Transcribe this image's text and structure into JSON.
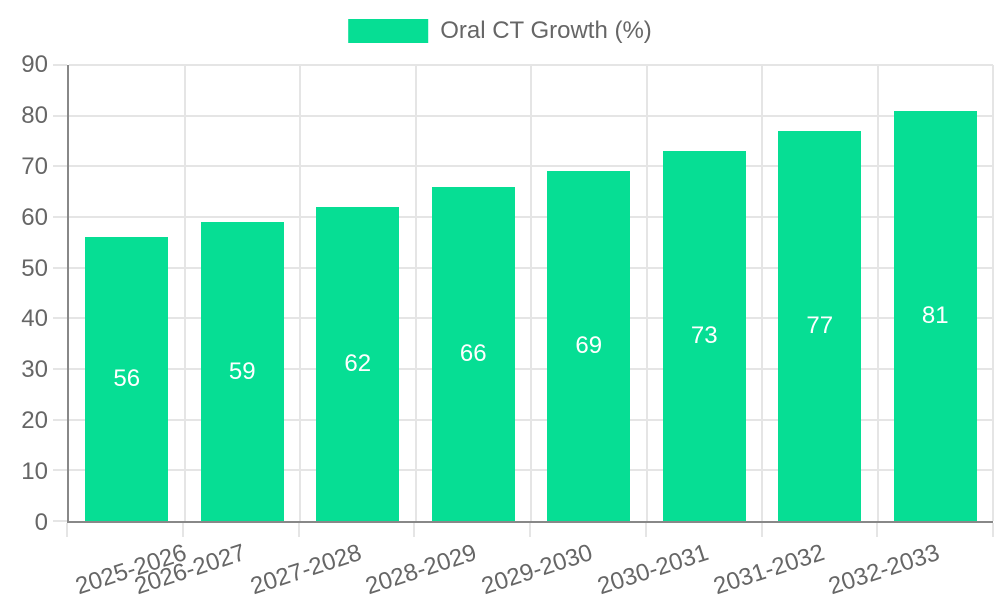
{
  "legend": {
    "label": "Oral CT Growth (%)"
  },
  "chart_data": {
    "type": "bar",
    "title": "",
    "legend_position": "top",
    "series_name": "Oral CT Growth (%)",
    "categories": [
      "2025-2026",
      "2026-2027",
      "2027-2028",
      "2028-2029",
      "2029-2030",
      "2030-2031",
      "2031-2032",
      "2032-2033"
    ],
    "values": [
      56,
      59,
      62,
      66,
      69,
      73,
      77,
      81
    ],
    "xlabel": "",
    "ylabel": "",
    "ylim": [
      0,
      90
    ],
    "yticks": [
      0,
      10,
      20,
      30,
      40,
      50,
      60,
      70,
      80,
      90
    ],
    "grid": true,
    "value_labels": "centered-inside-bars-white",
    "x_label_rotation_deg": -18,
    "bar_color": "#06DE94",
    "grid_color": "#e5e5e5",
    "axis_color": "#888888",
    "tick_label_color": "#666666",
    "value_label_color": "#ffffff"
  }
}
